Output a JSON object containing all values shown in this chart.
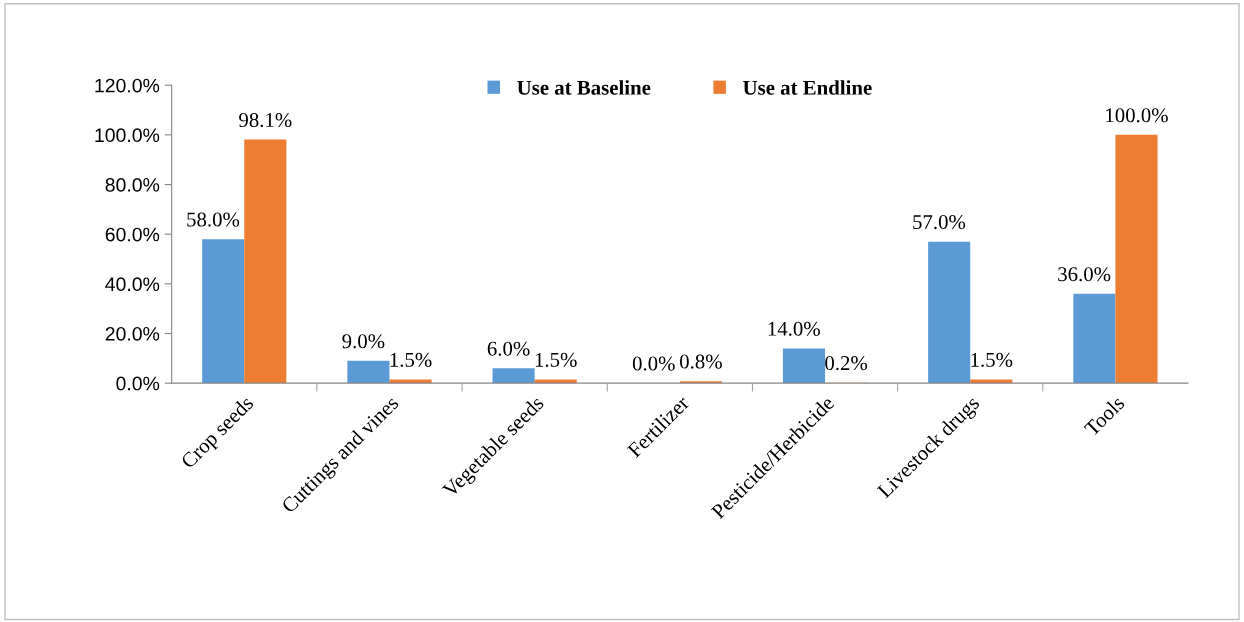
{
  "chart_data": {
    "type": "bar",
    "categories": [
      "Crop seeds",
      "Cuttings and vines",
      "Vegetable seeds",
      "Fertilizer",
      "Pesticide/Herbicide",
      "Livestock drugs",
      "Tools"
    ],
    "series": [
      {
        "name": "Use at Baseline",
        "color": "#5b9bd5",
        "values": [
          58.0,
          9.0,
          6.0,
          0.0,
          14.0,
          57.0,
          36.0
        ],
        "value_labels": [
          "58.0%",
          "9.0%",
          "6.0%",
          "0.0%",
          "14.0%",
          "57.0%",
          "36.0%"
        ]
      },
      {
        "name": "Use at Endline",
        "color": "#ed7d31",
        "values": [
          98.1,
          1.5,
          1.5,
          0.8,
          0.2,
          1.5,
          100.0
        ],
        "value_labels": [
          "98.1%",
          "1.5%",
          "1.5%",
          "0.8%",
          "0.2%",
          "1.5%",
          "100.0%"
        ]
      }
    ],
    "ylim": [
      0,
      120
    ],
    "yticks": [
      {
        "value": 0,
        "label": "0.0%"
      },
      {
        "value": 20,
        "label": "20.0%"
      },
      {
        "value": 40,
        "label": "40.0%"
      },
      {
        "value": 60,
        "label": "60.0%"
      },
      {
        "value": 80,
        "label": "80.0%"
      },
      {
        "value": 100,
        "label": "100.0%"
      },
      {
        "value": 120,
        "label": "120.0%"
      }
    ],
    "grid": false,
    "legend": "top"
  }
}
